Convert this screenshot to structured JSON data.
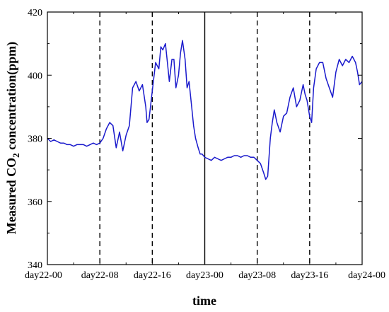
{
  "chart_data": {
    "type": "line",
    "title": "",
    "xlabel": "time",
    "ylabel_parts": [
      "Measured CO",
      "2",
      " concentration(ppm)"
    ],
    "ylim": [
      340,
      420
    ],
    "yticks": [
      340,
      360,
      380,
      400,
      420
    ],
    "xlim": [
      0,
      48
    ],
    "xticks": [
      0,
      8,
      16,
      24,
      32,
      40,
      48
    ],
    "xtick_labels": [
      "day22-00",
      "day22-08",
      "day22-16",
      "day23-00",
      "day23-08",
      "day23-16",
      "day24-00"
    ],
    "grid": false,
    "reference_lines": [
      {
        "x": 8,
        "style": "dashed"
      },
      {
        "x": 16,
        "style": "dashed"
      },
      {
        "x": 24,
        "style": "solid"
      },
      {
        "x": 32,
        "style": "dashed"
      },
      {
        "x": 40,
        "style": "dashed"
      }
    ],
    "series": [
      {
        "color": "#1a1acc",
        "x": [
          0,
          0.5,
          1,
          1.5,
          2,
          2.5,
          3,
          3.5,
          4,
          4.5,
          5,
          5.5,
          6,
          6.5,
          7,
          7.5,
          8,
          8.5,
          9,
          9.5,
          10,
          10.5,
          11,
          11.5,
          12,
          12.5,
          13,
          13.5,
          14,
          14.5,
          15,
          15.2,
          15.5,
          16,
          16.5,
          17,
          17.3,
          17.6,
          18,
          18.3,
          18.6,
          19,
          19.3,
          19.6,
          20,
          20.3,
          20.6,
          21,
          21.3,
          21.6,
          22,
          22.3,
          22.6,
          23,
          23.3,
          23.6,
          24,
          24.5,
          25,
          25.5,
          26,
          26.5,
          27,
          27.5,
          28,
          28.5,
          29,
          29.5,
          30,
          30.5,
          31,
          31.5,
          32,
          32.5,
          33,
          33.3,
          33.6,
          34,
          34.3,
          34.6,
          35,
          35.5,
          36,
          36.5,
          37,
          37.5,
          38,
          38.5,
          39,
          39.3,
          39.6,
          40,
          40.3,
          40.6,
          41,
          41.5,
          42,
          42.5,
          43,
          43.5,
          44,
          44.5,
          45,
          45.5,
          46,
          46.5,
          47,
          47.3,
          47.6,
          48
        ],
        "values": [
          380,
          379,
          379.5,
          379,
          378.5,
          378.5,
          378,
          378,
          377.5,
          378,
          378,
          378,
          377.5,
          378,
          378.5,
          378,
          378.5,
          380,
          383,
          385,
          384,
          377,
          382,
          376,
          381,
          384,
          396,
          398,
          395,
          397,
          390,
          385,
          386,
          395,
          404,
          402,
          409,
          408,
          410,
          404,
          398,
          405,
          405,
          396,
          400,
          407,
          411,
          405,
          396,
          398,
          390,
          384,
          380,
          377,
          375,
          375,
          374,
          373.5,
          373,
          374,
          373.5,
          373,
          373.5,
          374,
          374,
          374.5,
          374.5,
          374,
          374.5,
          374.5,
          374,
          374,
          373,
          372,
          369,
          367,
          368,
          380,
          385,
          389,
          385,
          382,
          387,
          388,
          393,
          396,
          390,
          392,
          397,
          394,
          392,
          387,
          385,
          396,
          402,
          404,
          404,
          399,
          396,
          393,
          401,
          405,
          403,
          405,
          404,
          406,
          404,
          401,
          397,
          398
        ]
      }
    ]
  }
}
